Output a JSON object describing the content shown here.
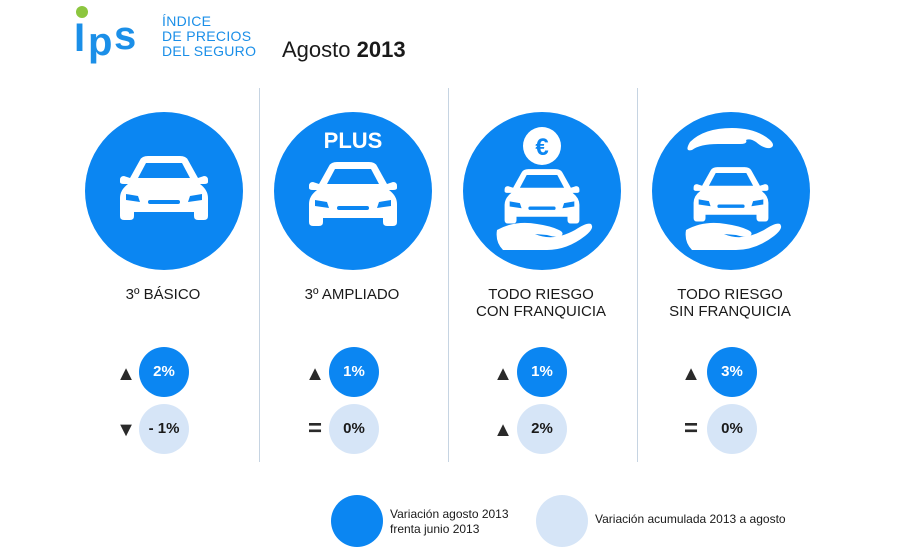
{
  "brand": {
    "logo_text": "IPS",
    "name_lines": [
      "ÍNDICE",
      "DE PRECIOS",
      "DEL SEGURO"
    ]
  },
  "period": {
    "month": "Agosto",
    "year": "2013"
  },
  "columns": [
    {
      "label_lines": [
        "3º BÁSICO"
      ],
      "badge": "",
      "icon": "car-icon",
      "monthly": {
        "direction": "up",
        "value": "2%"
      },
      "cumulative": {
        "direction": "down",
        "value": "- 1%"
      }
    },
    {
      "label_lines": [
        "3º AMPLIADO"
      ],
      "badge": "PLUS",
      "icon": "car-icon",
      "monthly": {
        "direction": "up",
        "value": "1%"
      },
      "cumulative": {
        "direction": "equal",
        "value": "0%"
      }
    },
    {
      "label_lines": [
        "TODO RIESGO",
        "CON FRANQUICIA"
      ],
      "badge": "€",
      "icon": "car-hand-coin-icon",
      "monthly": {
        "direction": "up",
        "value": "1%"
      },
      "cumulative": {
        "direction": "up",
        "value": "2%"
      }
    },
    {
      "label_lines": [
        "TODO RIESGO",
        "SIN FRANQUICIA"
      ],
      "badge": "",
      "icon": "car-hands-icon",
      "monthly": {
        "direction": "up",
        "value": "3%"
      },
      "cumulative": {
        "direction": "equal",
        "value": "0%"
      }
    }
  ],
  "legend": {
    "monthly_lines": [
      "Variación agosto 2013",
      "frenta junio 2013"
    ],
    "cumulative_label": "Variación acumulada 2013 a agosto"
  },
  "colors": {
    "accent": "#0b86f2",
    "light": "#d6e5f7",
    "logo_green": "#8cc63f",
    "logo_blue": "#1b8fe8"
  },
  "arrows": {
    "up": "▲",
    "down": "▼",
    "equal": "="
  }
}
